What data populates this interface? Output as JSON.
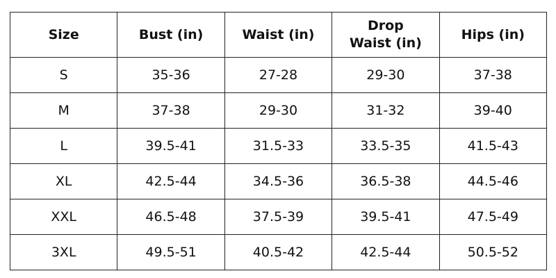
{
  "table": {
    "header": [
      "Size",
      "Bust (in)",
      "Waist (in)",
      "Drop Waist (in)",
      "Hips (in)"
    ],
    "rows": [
      [
        "S",
        "35-36",
        "27-28",
        "29-30",
        "37-38"
      ],
      [
        "M",
        "37-38",
        "29-30",
        "31-32",
        "39-40"
      ],
      [
        "L",
        "39.5-41",
        "31.5-33",
        "33.5-35",
        "41.5-43"
      ],
      [
        "XL",
        "42.5-44",
        "34.5-36",
        "36.5-38",
        "44.5-46"
      ],
      [
        "XXL",
        "46.5-48",
        "37.5-39",
        "39.5-41",
        "47.5-49"
      ],
      [
        "3XL",
        "49.5-51",
        "40.5-42",
        "42.5-44",
        "50.5-52"
      ]
    ]
  }
}
